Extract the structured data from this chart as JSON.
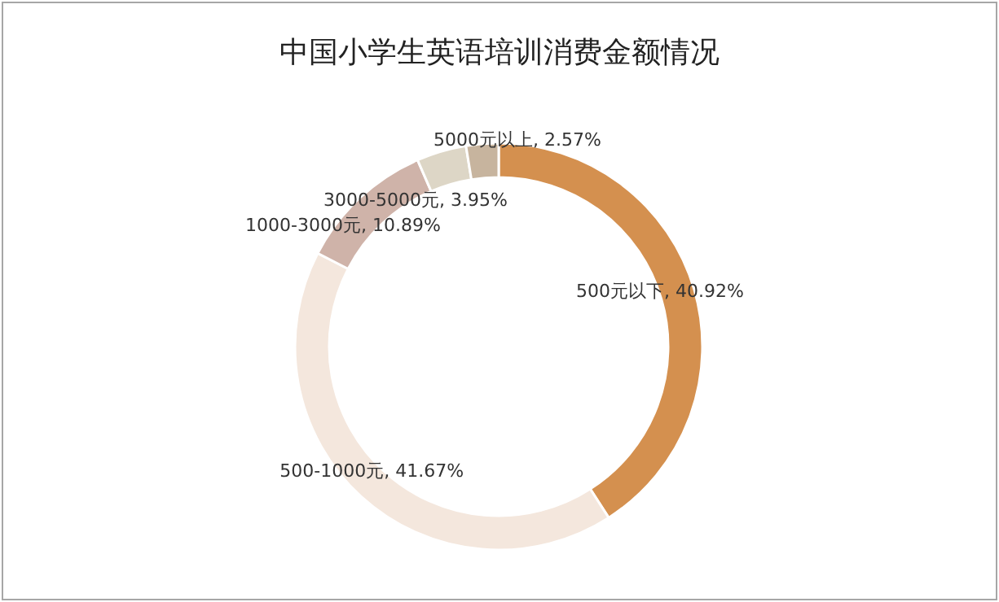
{
  "chart_data": {
    "type": "donut",
    "title": "中国小学生英语培训消费金额情况",
    "categories": [
      "500元以下",
      "500-1000元",
      "1000-3000元",
      "3000-5000元",
      "5000元以上"
    ],
    "values": [
      40.92,
      41.67,
      10.89,
      3.95,
      2.57
    ],
    "colors": [
      "#d4904f",
      "#f4e7dd",
      "#cfb3a9",
      "#ddd6c6",
      "#c7b49e"
    ],
    "value_labels": [
      ", 40.92%",
      ", 41.67%",
      ", 10.89%",
      ", 3.95%",
      ", 2.57%"
    ],
    "legend": false
  }
}
